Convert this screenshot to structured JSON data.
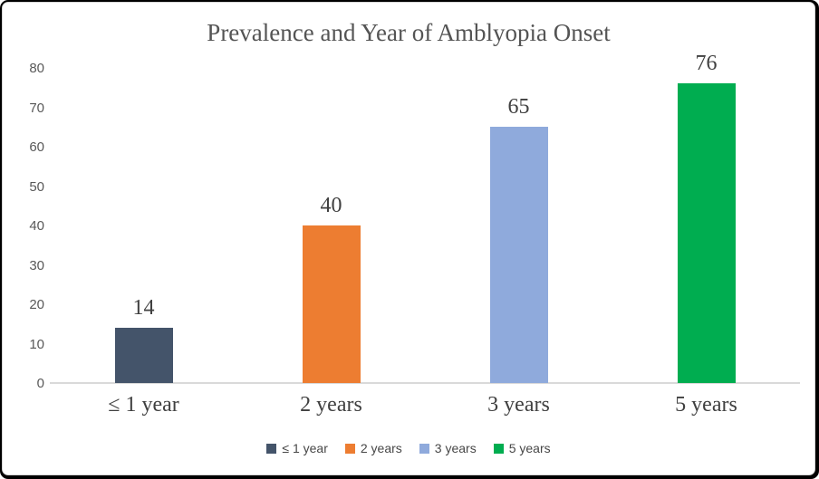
{
  "chart_data": {
    "type": "bar",
    "title": "Prevalence and Year of Amblyopia Onset",
    "categories": [
      "≤ 1 year",
      "2 years",
      "3 years",
      "5 years"
    ],
    "values": [
      14,
      40,
      65,
      76
    ],
    "data_labels": [
      "14",
      "40",
      "65",
      "76"
    ],
    "bar_colors": [
      "#44546A",
      "#ED7D31",
      "#8FAADC",
      "#00AD50"
    ],
    "xlabel": "",
    "ylabel": "",
    "ylim": [
      0,
      80
    ],
    "y_ticks": [
      0,
      10,
      20,
      30,
      40,
      50,
      60,
      70,
      80
    ],
    "grid": false,
    "legend": {
      "position": "bottom",
      "entries": [
        {
          "label": "≤ 1 year",
          "color": "#44546A"
        },
        {
          "label": "2 years",
          "color": "#ED7D31"
        },
        {
          "label": "3 years",
          "color": "#8FAADC"
        },
        {
          "label": "5 years",
          "color": "#00AD50"
        }
      ]
    }
  },
  "colors": {
    "title_text": "#545454",
    "axis_tick_text": "#595959",
    "data_label_text": "#404040",
    "axis_line": "#D9D9D9",
    "frame_border": "#000000",
    "surface_border": "#D6D6D6"
  }
}
